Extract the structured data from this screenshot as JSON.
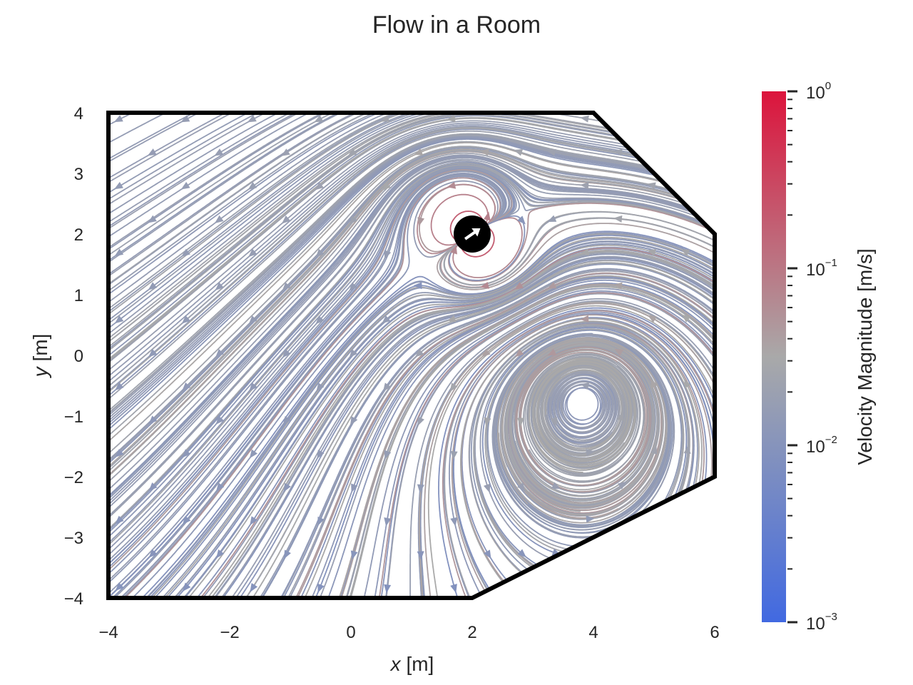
{
  "chart_data": {
    "type": "streamplot",
    "title": "Flow in a Room",
    "xlabel": {
      "var": "x",
      "unit": "[m]"
    },
    "ylabel": {
      "var": "y",
      "unit": "[m]"
    },
    "xlim": [
      -4,
      6
    ],
    "ylim": [
      -4,
      4
    ],
    "xticks": [
      "−4",
      "−2",
      "0",
      "2",
      "4",
      "6"
    ],
    "xtick_values": [
      -4,
      -2,
      0,
      2,
      4,
      6
    ],
    "yticks": [
      "4",
      "3",
      "2",
      "1",
      "0",
      "−1",
      "−2",
      "−3",
      "−4"
    ],
    "ytick_values": [
      4,
      3,
      2,
      1,
      0,
      -1,
      -2,
      -3,
      -4
    ],
    "room_boundary": [
      [
        -4,
        -4
      ],
      [
        -4,
        4
      ],
      [
        4,
        4
      ],
      [
        6,
        2
      ],
      [
        6,
        -2
      ],
      [
        2,
        -4
      ],
      [
        -4,
        -4
      ]
    ],
    "source": {
      "x": 2,
      "y": 2,
      "direction_deg": 35
    },
    "grid": false,
    "colorbar": {
      "label": "Velocity Magnitude [m/s]",
      "scale": "log",
      "range": [
        0.001,
        1
      ],
      "ticks": [
        {
          "value": 1,
          "base": "10",
          "exp": "0"
        },
        {
          "value": 0.1,
          "base": "10",
          "exp": "−1"
        },
        {
          "value": 0.01,
          "base": "10",
          "exp": "−2"
        },
        {
          "value": 0.001,
          "base": "10",
          "exp": "−3"
        }
      ],
      "colors": [
        "#4169e1",
        "#a9a9a9",
        "#dc143c"
      ]
    }
  }
}
